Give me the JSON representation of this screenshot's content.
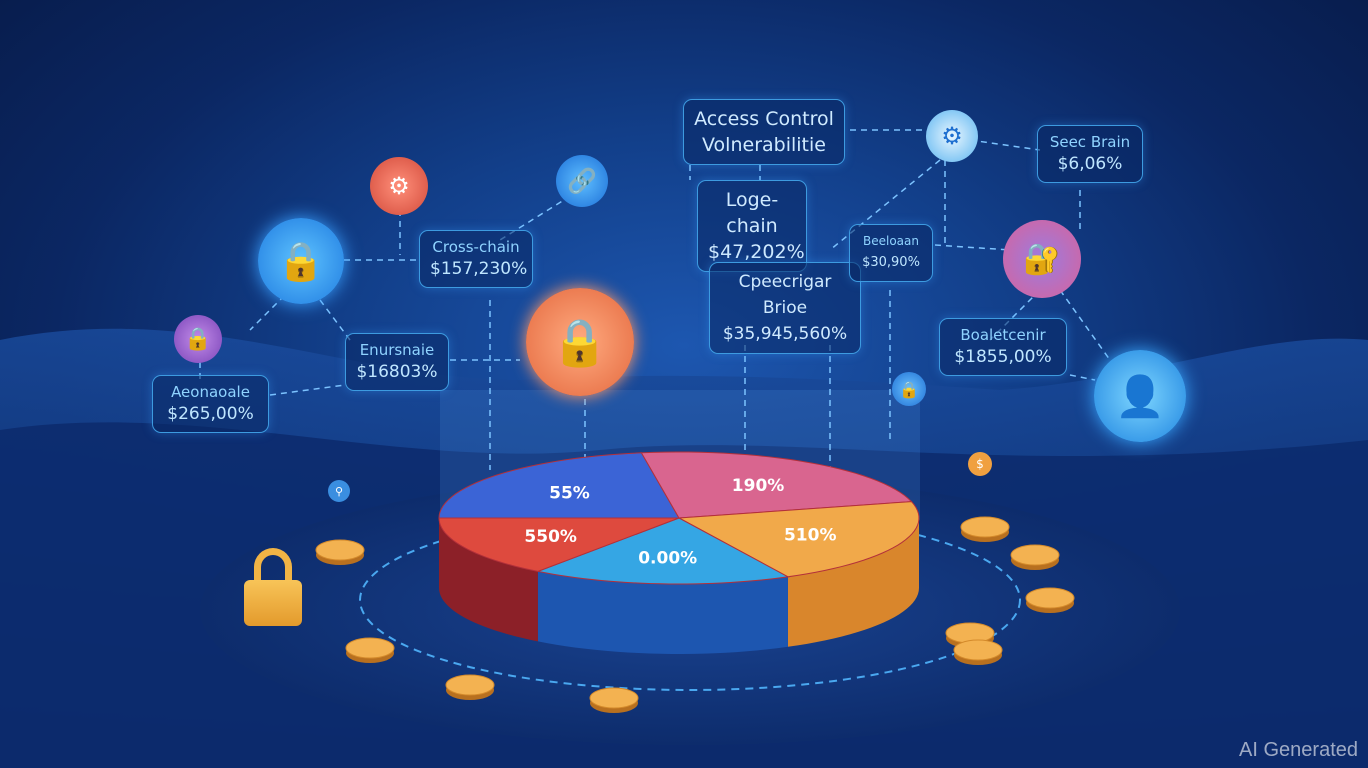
{
  "labels": [
    {
      "title": "Access Control",
      "value": "Volnerabilitie"
    },
    {
      "title": "Cross-chain",
      "value": "$157,230%"
    },
    {
      "title": "Enursnaie",
      "value": "$16803%"
    },
    {
      "title": "Aeonaoale",
      "value": "$265,00%"
    },
    {
      "title": "Loge-chain",
      "value": "$47,202%"
    },
    {
      "title": "Cpeecrigar Brioe",
      "value": "$35,945,560%"
    },
    {
      "title": "Beeloaan",
      "value": "$30,90%"
    },
    {
      "title": "Seec Brain",
      "value": "$6,06%"
    },
    {
      "title": "Boaletcenir",
      "value": "$1855,00%"
    }
  ],
  "pie_labels": [
    "55%",
    "190%",
    "510%",
    "0.00%",
    "550%"
  ],
  "colors": {
    "blue": "#3b64d6",
    "pink": "#d9658f",
    "orange": "#f1a94a",
    "light_blue": "#35a6e4",
    "red": "#de4a3e"
  },
  "icons": [
    "lock-icon",
    "gear-icon",
    "link-icon",
    "user-icon",
    "coin-icon"
  ],
  "watermark": "AI Generated"
}
